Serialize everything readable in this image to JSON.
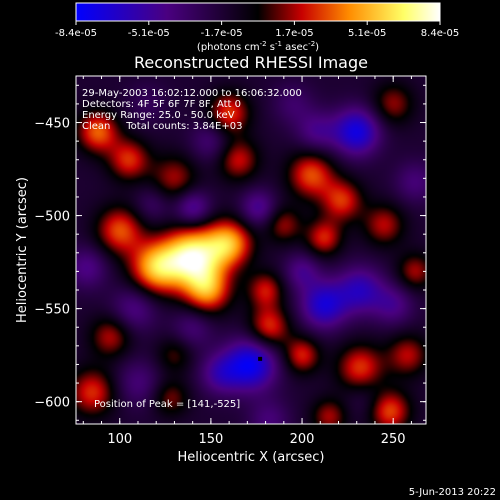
{
  "chart_data": {
    "type": "heatmap",
    "title": "Reconstructed RHESSI Image",
    "xlabel": "Heliocentric X (arcsec)",
    "ylabel": "Heliocentric Y (arcsec)",
    "xlim": [
      76,
      268
    ],
    "ylim": [
      -612,
      -425
    ],
    "x_ticks": [
      100,
      150,
      200,
      250
    ],
    "y_ticks": [
      -450,
      -500,
      -550,
      -600
    ],
    "colorbar": {
      "min": -8.4e-05,
      "max": 8.4e-05,
      "tick_labels": [
        "-8.4e-05",
        "-5.1e-05",
        "-1.7e-05",
        "1.7e-05",
        "5.1e-05",
        "8.4e-05"
      ],
      "units_prefix": "(photons cm",
      "units_sup1": "-2",
      "units_mid": " s",
      "units_sup2": "-1",
      "units_mid2": " asec",
      "units_sup3": "-2",
      "units_suffix": ")",
      "colors": [
        "#0000ff",
        "#4a0080",
        "#000000",
        "#c80000",
        "#ff8c00",
        "#ffff66",
        "#ffffff"
      ]
    },
    "annotations": [
      "29-May-2003 16:02:12.000 to 16:06:32.000",
      "Detectors: 4F 5F 6F 7F 8F, Att 0",
      "Energy Range: 25.0 - 50.0 keV",
      "Clean     Total counts: 3.84E+03"
    ],
    "peak_label": "Position of Peak = [141,-525]",
    "peak": [
      141,
      -525
    ],
    "marker": [
      177,
      -577
    ],
    "sources": [
      {
        "x": 140,
        "y": -522,
        "value": 8.4e-05,
        "r": 11
      },
      {
        "x": 120,
        "y": -528,
        "value": 6.5e-05,
        "r": 10
      },
      {
        "x": 160,
        "y": -515,
        "value": 6e-05,
        "r": 9
      },
      {
        "x": 148,
        "y": -540,
        "value": 5.5e-05,
        "r": 9
      },
      {
        "x": 100,
        "y": -508,
        "value": 4.5e-05,
        "r": 9
      },
      {
        "x": 88,
        "y": -455,
        "value": 4.8e-05,
        "r": 8
      },
      {
        "x": 105,
        "y": -470,
        "value": 4e-05,
        "r": 8
      },
      {
        "x": 130,
        "y": -480,
        "value": 3e-05,
        "r": 9
      },
      {
        "x": 165,
        "y": -470,
        "value": 3.5e-05,
        "r": 8
      },
      {
        "x": 205,
        "y": -478,
        "value": 4.5e-05,
        "r": 9
      },
      {
        "x": 222,
        "y": -492,
        "value": 4e-05,
        "r": 8
      },
      {
        "x": 245,
        "y": -505,
        "value": 3.2e-05,
        "r": 8
      },
      {
        "x": 212,
        "y": -512,
        "value": 3.8e-05,
        "r": 7
      },
      {
        "x": 190,
        "y": -505,
        "value": 2.8e-05,
        "r": 7
      },
      {
        "x": 180,
        "y": -540,
        "value": 3.5e-05,
        "r": 7
      },
      {
        "x": 182,
        "y": -560,
        "value": 4.2e-05,
        "r": 8
      },
      {
        "x": 200,
        "y": -575,
        "value": 3.8e-05,
        "r": 7
      },
      {
        "x": 232,
        "y": -582,
        "value": 4.2e-05,
        "r": 9
      },
      {
        "x": 258,
        "y": -575,
        "value": 3.2e-05,
        "r": 8
      },
      {
        "x": 248,
        "y": -605,
        "value": 4.5e-05,
        "r": 8
      },
      {
        "x": 215,
        "y": -608,
        "value": 3e-05,
        "r": 7
      },
      {
        "x": 95,
        "y": -565,
        "value": 3.2e-05,
        "r": 8
      },
      {
        "x": 85,
        "y": -595,
        "value": 4e-05,
        "r": 9
      },
      {
        "x": 130,
        "y": -575,
        "value": 2e-05,
        "r": 7
      },
      {
        "x": 160,
        "y": -445,
        "value": 4.2e-05,
        "r": 8
      },
      {
        "x": 250,
        "y": -440,
        "value": 2.8e-05,
        "r": 8
      },
      {
        "x": 262,
        "y": -530,
        "value": 3e-05,
        "r": 7
      },
      {
        "x": 128,
        "y": -598,
        "value": 2.5e-05,
        "r": 7
      },
      {
        "x": 150,
        "y": -460,
        "value": -2.5e-05,
        "r": 8
      },
      {
        "x": 230,
        "y": -455,
        "value": -6e-05,
        "r": 9
      },
      {
        "x": 208,
        "y": -455,
        "value": -3e-05,
        "r": 8
      },
      {
        "x": 140,
        "y": -496,
        "value": -4e-05,
        "r": 7
      },
      {
        "x": 176,
        "y": -496,
        "value": -3.5e-05,
        "r": 7
      },
      {
        "x": 118,
        "y": -494,
        "value": -2e-05,
        "r": 7
      },
      {
        "x": 232,
        "y": -540,
        "value": -4.5e-05,
        "r": 9
      },
      {
        "x": 212,
        "y": -548,
        "value": -5.5e-05,
        "r": 9
      },
      {
        "x": 250,
        "y": -548,
        "value": -3e-05,
        "r": 8
      },
      {
        "x": 200,
        "y": -530,
        "value": -3e-05,
        "r": 7
      },
      {
        "x": 108,
        "y": -550,
        "value": -3e-05,
        "r": 9
      },
      {
        "x": 140,
        "y": -560,
        "value": -2.5e-05,
        "r": 8
      },
      {
        "x": 172,
        "y": -580,
        "value": -6.5e-05,
        "r": 10
      },
      {
        "x": 155,
        "y": -585,
        "value": -3.5e-05,
        "r": 8
      },
      {
        "x": 110,
        "y": -590,
        "value": -2.5e-05,
        "r": 9
      },
      {
        "x": 82,
        "y": -528,
        "value": -3e-05,
        "r": 8
      },
      {
        "x": 235,
        "y": -598,
        "value": -1.5e-05,
        "r": 8
      },
      {
        "x": 182,
        "y": -610,
        "value": -2.5e-05,
        "r": 8
      },
      {
        "x": 195,
        "y": -440,
        "value": -2e-05,
        "r": 8
      },
      {
        "x": 262,
        "y": -482,
        "value": -2.5e-05,
        "r": 8
      },
      {
        "x": 115,
        "y": -440,
        "value": -1.5e-05,
        "r": 8
      }
    ],
    "base_level": -1.6e-05
  },
  "footer": {
    "timestamp": "5-Jun-2013 20:22"
  }
}
